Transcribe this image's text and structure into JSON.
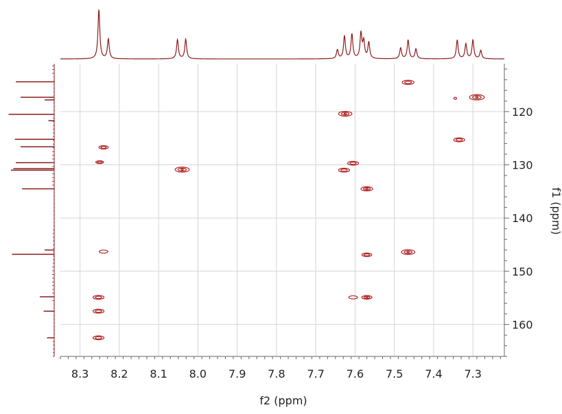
{
  "chart_data": {
    "type": "hsqc-contour",
    "xlabel": "f2 (ppm)",
    "ylabel": "f1 (ppm)",
    "xlim": [
      8.35,
      7.22
    ],
    "ylim": [
      111,
      166
    ],
    "x_ticks": [
      8.3,
      8.2,
      8.1,
      8.0,
      7.9,
      7.8,
      7.7,
      7.6,
      7.5,
      7.4,
      7.3
    ],
    "x_tick_labels": [
      "8.3",
      "8.2",
      "8.1",
      "8.0",
      "7.9",
      "7.8",
      "7.7",
      "7.6",
      "7.5",
      "7.4",
      "7.3"
    ],
    "y_ticks": [
      120,
      130,
      140,
      150,
      160
    ],
    "y_tick_labels": [
      "120",
      "130",
      "140",
      "150",
      "160"
    ],
    "grid": true,
    "contour_color": "#b22222",
    "projection_color": "#8b1a1a",
    "cross_peaks": [
      {
        "f2": 7.465,
        "f1": 114.5,
        "w": 0.03,
        "levels": 2
      },
      {
        "f2": 7.29,
        "f1": 117.3,
        "w": 0.038,
        "levels": 3
      },
      {
        "f2": 7.345,
        "f1": 117.5,
        "w": 0.002,
        "levels": 1
      },
      {
        "f2": 7.625,
        "f1": 120.4,
        "w": 0.034,
        "levels": 3
      },
      {
        "f2": 7.335,
        "f1": 125.3,
        "w": 0.028,
        "levels": 2
      },
      {
        "f2": 8.24,
        "f1": 126.7,
        "w": 0.024,
        "levels": 2
      },
      {
        "f2": 8.25,
        "f1": 129.5,
        "w": 0.02,
        "levels": 2
      },
      {
        "f2": 7.605,
        "f1": 129.7,
        "w": 0.028,
        "levels": 2
      },
      {
        "f2": 8.04,
        "f1": 130.9,
        "w": 0.036,
        "levels": 3
      },
      {
        "f2": 7.628,
        "f1": 131.0,
        "w": 0.028,
        "levels": 2
      },
      {
        "f2": 7.57,
        "f1": 134.5,
        "w": 0.03,
        "levels": 3
      },
      {
        "f2": 8.24,
        "f1": 146.3,
        "w": 0.022,
        "levels": 1
      },
      {
        "f2": 7.465,
        "f1": 146.4,
        "w": 0.034,
        "levels": 3
      },
      {
        "f2": 7.57,
        "f1": 146.9,
        "w": 0.025,
        "levels": 2
      },
      {
        "f2": 8.253,
        "f1": 154.9,
        "w": 0.028,
        "levels": 2
      },
      {
        "f2": 7.605,
        "f1": 154.9,
        "w": 0.022,
        "levels": 1
      },
      {
        "f2": 7.57,
        "f1": 154.9,
        "w": 0.026,
        "levels": 3
      },
      {
        "f2": 8.253,
        "f1": 157.5,
        "w": 0.028,
        "levels": 2
      },
      {
        "f2": 8.253,
        "f1": 162.5,
        "w": 0.028,
        "levels": 2
      }
    ],
    "f2_projection_peaks": [
      {
        "x": 8.252,
        "h": 1.0
      },
      {
        "x": 8.228,
        "h": 0.4
      },
      {
        "x": 8.052,
        "h": 0.39
      },
      {
        "x": 8.031,
        "h": 0.4
      },
      {
        "x": 7.645,
        "h": 0.18
      },
      {
        "x": 7.627,
        "h": 0.46
      },
      {
        "x": 7.608,
        "h": 0.5
      },
      {
        "x": 7.585,
        "h": 0.51
      },
      {
        "x": 7.578,
        "h": 0.34
      },
      {
        "x": 7.565,
        "h": 0.33
      },
      {
        "x": 7.484,
        "h": 0.22
      },
      {
        "x": 7.465,
        "h": 0.38
      },
      {
        "x": 7.445,
        "h": 0.2
      },
      {
        "x": 7.34,
        "h": 0.38
      },
      {
        "x": 7.318,
        "h": 0.3
      },
      {
        "x": 7.3,
        "h": 0.38
      },
      {
        "x": 7.28,
        "h": 0.17
      }
    ],
    "f1_projection_peaks": [
      {
        "y": 114.4,
        "h": 0.8
      },
      {
        "y": 117.3,
        "h": 0.7
      },
      {
        "y": 117.8,
        "h": 0.2
      },
      {
        "y": 120.5,
        "h": 0.95
      },
      {
        "y": 121.7,
        "h": 0.12
      },
      {
        "y": 125.2,
        "h": 0.82
      },
      {
        "y": 126.6,
        "h": 0.7
      },
      {
        "y": 129.6,
        "h": 0.8
      },
      {
        "y": 130.7,
        "h": 0.85
      },
      {
        "y": 131.0,
        "h": 0.9
      },
      {
        "y": 134.5,
        "h": 0.67
      },
      {
        "y": 146.0,
        "h": 0.2
      },
      {
        "y": 146.8,
        "h": 0.88
      },
      {
        "y": 154.8,
        "h": 0.3
      },
      {
        "y": 157.5,
        "h": 0.22
      },
      {
        "y": 162.5,
        "h": 0.15
      }
    ]
  }
}
